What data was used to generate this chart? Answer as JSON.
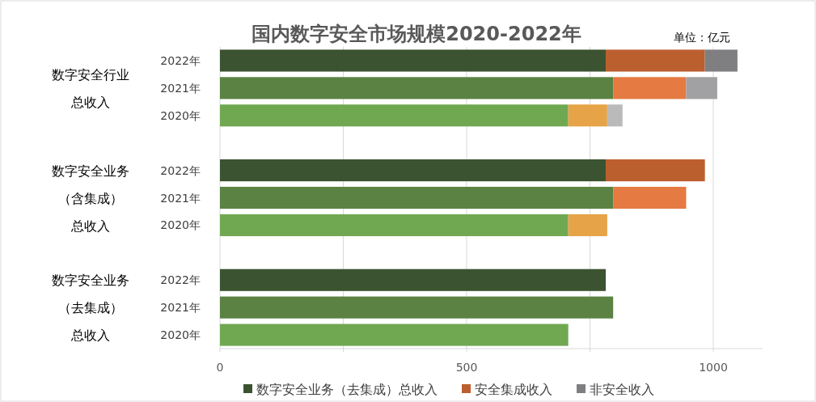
{
  "chart_data": {
    "type": "bar",
    "orientation": "horizontal",
    "stacked": true,
    "title": "国内数字安全市场规模2020-2022年",
    "annotations": [
      "单位：亿元",
      "数字安全行业总收入",
      "数字安全业务（含集成）总收入",
      "数字安全业务（去集成）总收入"
    ],
    "categories": [
      "2022年",
      "2021年",
      "2020年",
      null,
      "2022年",
      "2021年",
      "2020年",
      null,
      "2022年",
      "2021年",
      "2020年"
    ],
    "series": [
      {
        "name": "数字安全业务（去集成）总收入",
        "color": "#3b5330",
        "values": [
          782,
          797,
          706,
          null,
          782,
          797,
          706,
          null,
          782,
          797,
          706
        ],
        "colors": [
          "#3b5330",
          "#5b8243",
          "#70a852",
          null,
          "#3b5330",
          "#5b8243",
          "#70a852",
          null,
          "#3b5330",
          "#5b8243",
          "#70a852"
        ]
      },
      {
        "name": "安全集成收入",
        "color": "#bc5f2e",
        "values": [
          201,
          148,
          79,
          null,
          201,
          148,
          79,
          null,
          null,
          null,
          null
        ],
        "colors": [
          "#bc5f2e",
          "#e57a43",
          "#e6a347",
          null,
          "#bc5f2e",
          "#e57a43",
          "#e6a347",
          null,
          null,
          null,
          null
        ]
      },
      {
        "name": "非安全收入",
        "color": "#7f7f81",
        "values": [
          66,
          63,
          31,
          null,
          null,
          null,
          null,
          null,
          null,
          null,
          null
        ],
        "colors": [
          "#7f7f81",
          "#a1a1a3",
          "#bababa",
          null,
          null,
          null,
          null,
          null,
          null,
          null,
          null
        ]
      }
    ],
    "xlim": [
      0,
      1100
    ],
    "xticks": [
      0,
      {
        "value": 250,
        "label": null
      },
      500,
      {
        "value": 750,
        "label": null
      },
      1000
    ],
    "grid": "x",
    "legend": "bottom"
  }
}
